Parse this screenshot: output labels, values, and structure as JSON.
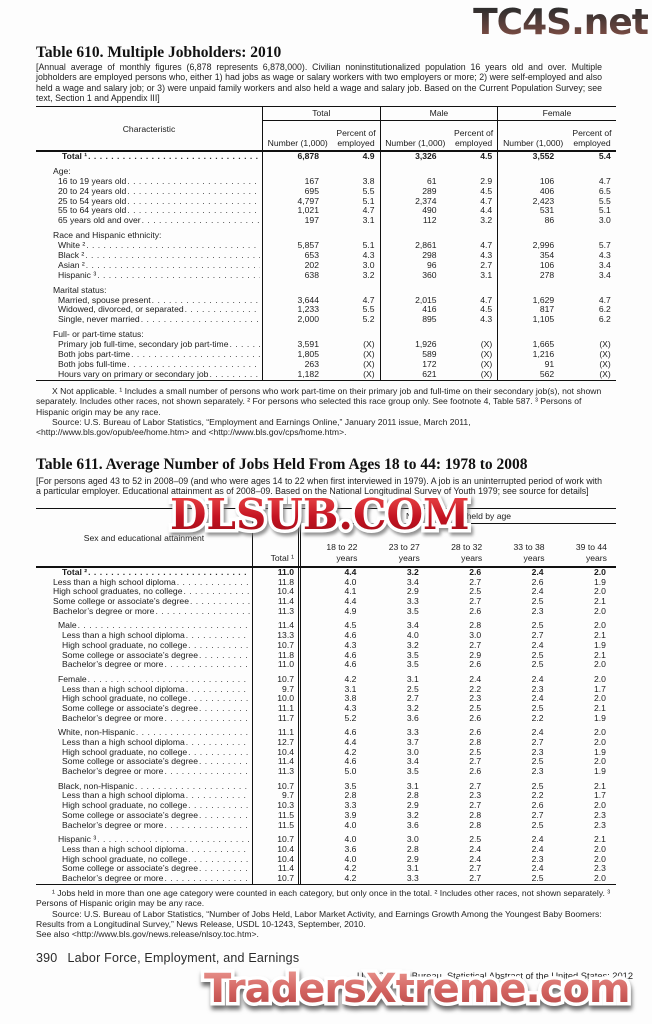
{
  "watermarks": {
    "top": "TC4S.net",
    "middle": "DLSUB.COM",
    "bottom": "TradersXtreme.com",
    "top_color": "#4a3b38",
    "middle_color": "#c01622",
    "bottom_color": "#d05f5c"
  },
  "table610": {
    "title": "Table 610. Multiple Jobholders: 2010",
    "intro": "[Annual average of monthly figures (6,878 represents 6,878,000). Civilian noninstitutionalized population 16 years old and over. Multiple jobholders are employed persons who, either 1) had jobs as wage or salary workers with two employers or more; 2) were self-employed and also held a wage and salary job; or 3) were unpaid family workers and also held a wage and salary job. Based on the Current Population Survey; see text, Section 1 and Appendix III]",
    "col_header": "Characteristic",
    "groups": [
      "Total",
      "Male",
      "Female"
    ],
    "sub_number": "Number (1,000)",
    "sub_percent": "Percent of employed",
    "rows": [
      {
        "label": "Total ¹",
        "indent": 2,
        "bold": true,
        "dots": true,
        "values": [
          "6,878",
          "4.9",
          "3,326",
          "4.5",
          "3,552",
          "5.4"
        ]
      },
      {
        "gap": true
      },
      {
        "label": "Age:",
        "indent": 0
      },
      {
        "label": "16 to 19 years old",
        "indent": 1,
        "dots": true,
        "values": [
          "167",
          "3.8",
          "61",
          "2.9",
          "106",
          "4.7"
        ]
      },
      {
        "label": "20 to 24 years old",
        "indent": 1,
        "dots": true,
        "values": [
          "695",
          "5.5",
          "289",
          "4.5",
          "406",
          "6.5"
        ]
      },
      {
        "label": "25 to 54 years old",
        "indent": 1,
        "dots": true,
        "values": [
          "4,797",
          "5.1",
          "2,374",
          "4.7",
          "2,423",
          "5.5"
        ]
      },
      {
        "label": "55 to 64 years old",
        "indent": 1,
        "dots": true,
        "values": [
          "1,021",
          "4.7",
          "490",
          "4.4",
          "531",
          "5.1"
        ]
      },
      {
        "label": "65 years old and over",
        "indent": 1,
        "dots": true,
        "values": [
          "197",
          "3.1",
          "112",
          "3.2",
          "86",
          "3.0"
        ]
      },
      {
        "gap": true
      },
      {
        "label": "Race and Hispanic ethnicity:",
        "indent": 0
      },
      {
        "label": "White ²",
        "indent": 1,
        "dots": true,
        "values": [
          "5,857",
          "5.1",
          "2,861",
          "4.7",
          "2,996",
          "5.7"
        ]
      },
      {
        "label": "Black ²",
        "indent": 1,
        "dots": true,
        "values": [
          "653",
          "4.3",
          "298",
          "4.3",
          "354",
          "4.3"
        ]
      },
      {
        "label": "Asian ²",
        "indent": 1,
        "dots": true,
        "values": [
          "202",
          "3.0",
          "96",
          "2.7",
          "106",
          "3.4"
        ]
      },
      {
        "label": "Hispanic ³",
        "indent": 1,
        "dots": true,
        "values": [
          "638",
          "3.2",
          "360",
          "3.1",
          "278",
          "3.4"
        ]
      },
      {
        "gap": true
      },
      {
        "label": "Marital status:",
        "indent": 0
      },
      {
        "label": "Married, spouse present",
        "indent": 1,
        "dots": true,
        "values": [
          "3,644",
          "4.7",
          "2,015",
          "4.7",
          "1,629",
          "4.7"
        ]
      },
      {
        "label": "Widowed, divorced, or separated",
        "indent": 1,
        "dots": true,
        "values": [
          "1,233",
          "5.5",
          "416",
          "4.5",
          "817",
          "6.2"
        ]
      },
      {
        "label": "Single, never married",
        "indent": 1,
        "dots": true,
        "values": [
          "2,000",
          "5.2",
          "895",
          "4.3",
          "1,105",
          "6.2"
        ]
      },
      {
        "gap": true
      },
      {
        "label": "Full- or part-time status:",
        "indent": 0
      },
      {
        "label": "Primary job full-time, secondary job part-time",
        "indent": 1,
        "dots": true,
        "values": [
          "3,591",
          "(X)",
          "1,926",
          "(X)",
          "1,665",
          "(X)"
        ]
      },
      {
        "label": "Both jobs part-time",
        "indent": 1,
        "dots": true,
        "values": [
          "1,805",
          "(X)",
          "589",
          "(X)",
          "1,216",
          "(X)"
        ]
      },
      {
        "label": "Both jobs full-time",
        "indent": 1,
        "dots": true,
        "values": [
          "263",
          "(X)",
          "172",
          "(X)",
          "91",
          "(X)"
        ]
      },
      {
        "label": "Hours vary on primary or secondary job",
        "indent": 1,
        "dots": true,
        "values": [
          "1,182",
          "(X)",
          "621",
          "(X)",
          "562",
          "(X)"
        ]
      }
    ],
    "footnote": "X Not applicable. ¹ Includes a small number of persons who work part-time on their primary job and full-time on their secondary job(s), not shown separately. Includes other races, not shown separately. ² For persons who selected this race group only. See footnote 4, Table 587. ³ Persons of Hispanic origin may be any race.",
    "source": "Source: U.S. Bureau of Labor Statistics, “Employment and Earnings Online,” January 2011 issue, March 2011, <http://www.bls.gov/opub/ee/home.htm> and <http://www.bls.gov/cps/home.htm>."
  },
  "table611": {
    "title": "Table 611. Average Number of Jobs Held From Ages 18 to 44: 1978 to 2008",
    "intro": "[For persons aged 43 to 52 in 2008–09 (and who were ages 14 to 22 when first interviewed in 1979). A job is an uninterrupted period of work with a particular employer. Educational attainment as of 2008–09. Based on the National Longitudinal Survey of Youth 1979; see source for details]",
    "col_header": "Sex and educational attainment",
    "total_col": "Total ¹",
    "span_header": "Number of jobs held by age",
    "age_cols": [
      "18 to 22\nyears",
      "23 to 27\nyears",
      "28 to 32\nyears",
      "33 to 38\nyears",
      "39 to 44\nyears"
    ],
    "rows": [
      {
        "label": "Total ²",
        "indent": 2,
        "bold": true,
        "dots": true,
        "values": [
          "11.0",
          "4.4",
          "3.2",
          "2.6",
          "2.4",
          "2.0"
        ]
      },
      {
        "label": "Less than a high school diploma",
        "indent": 0,
        "dots": true,
        "values": [
          "11.8",
          "4.0",
          "3.4",
          "2.7",
          "2.6",
          "1.9"
        ]
      },
      {
        "label": "High school graduates, no college",
        "indent": 0,
        "dots": true,
        "values": [
          "10.4",
          "4.1",
          "2.9",
          "2.5",
          "2.4",
          "2.0"
        ]
      },
      {
        "label": "Some college or associate’s degree",
        "indent": 0,
        "dots": true,
        "values": [
          "11.4",
          "4.4",
          "3.3",
          "2.7",
          "2.5",
          "2.1"
        ]
      },
      {
        "label": "Bachelor’s degree or more",
        "indent": 0,
        "dots": true,
        "values": [
          "11.3",
          "4.9",
          "3.5",
          "2.6",
          "2.3",
          "2.0"
        ]
      },
      {
        "gap": true
      },
      {
        "label": "Male",
        "indent": 1,
        "dots": true,
        "values": [
          "11.4",
          "4.5",
          "3.4",
          "2.8",
          "2.5",
          "2.0"
        ]
      },
      {
        "label": "Less than a high school diploma",
        "indent": 2,
        "dots": true,
        "values": [
          "13.3",
          "4.6",
          "4.0",
          "3.0",
          "2.7",
          "2.1"
        ]
      },
      {
        "label": "High school graduate, no college",
        "indent": 2,
        "dots": true,
        "values": [
          "10.7",
          "4.3",
          "3.2",
          "2.7",
          "2.4",
          "1.9"
        ]
      },
      {
        "label": "Some college or associate’s degree",
        "indent": 2,
        "dots": true,
        "values": [
          "11.8",
          "4.6",
          "3.5",
          "2.9",
          "2.5",
          "2.1"
        ]
      },
      {
        "label": "Bachelor’s degree or more",
        "indent": 2,
        "dots": true,
        "values": [
          "11.0",
          "4.6",
          "3.5",
          "2.6",
          "2.5",
          "2.0"
        ]
      },
      {
        "gap": true
      },
      {
        "label": "Female",
        "indent": 1,
        "dots": true,
        "values": [
          "10.7",
          "4.2",
          "3.1",
          "2.4",
          "2.4",
          "2.0"
        ]
      },
      {
        "label": "Less than a high school diploma",
        "indent": 2,
        "dots": true,
        "values": [
          "9.7",
          "3.1",
          "2.5",
          "2.2",
          "2.3",
          "1.7"
        ]
      },
      {
        "label": "High school graduate, no college",
        "indent": 2,
        "dots": true,
        "values": [
          "10.0",
          "3.8",
          "2.7",
          "2.3",
          "2.4",
          "2.0"
        ]
      },
      {
        "label": "Some college or associate’s degree",
        "indent": 2,
        "dots": true,
        "values": [
          "11.1",
          "4.3",
          "3.2",
          "2.5",
          "2.5",
          "2.1"
        ]
      },
      {
        "label": "Bachelor’s degree or more",
        "indent": 2,
        "dots": true,
        "values": [
          "11.7",
          "5.2",
          "3.6",
          "2.6",
          "2.2",
          "1.9"
        ]
      },
      {
        "gap": true
      },
      {
        "label": "White, non-Hispanic",
        "indent": 1,
        "dots": true,
        "values": [
          "11.1",
          "4.6",
          "3.3",
          "2.6",
          "2.4",
          "2.0"
        ]
      },
      {
        "label": "Less than a high school diploma",
        "indent": 2,
        "dots": true,
        "values": [
          "12.7",
          "4.4",
          "3.7",
          "2.8",
          "2.7",
          "2.0"
        ]
      },
      {
        "label": "High school graduate, no college",
        "indent": 2,
        "dots": true,
        "values": [
          "10.4",
          "4.2",
          "3.0",
          "2.5",
          "2.3",
          "1.9"
        ]
      },
      {
        "label": "Some college or associate’s degree",
        "indent": 2,
        "dots": true,
        "values": [
          "11.4",
          "4.6",
          "3.4",
          "2.7",
          "2.5",
          "2.0"
        ]
      },
      {
        "label": "Bachelor’s degree or more",
        "indent": 2,
        "dots": true,
        "values": [
          "11.3",
          "5.0",
          "3.5",
          "2.6",
          "2.3",
          "1.9"
        ]
      },
      {
        "gap": true
      },
      {
        "label": "Black, non-Hispanic",
        "indent": 1,
        "dots": true,
        "values": [
          "10.7",
          "3.5",
          "3.1",
          "2.7",
          "2.5",
          "2.1"
        ]
      },
      {
        "label": "Less than a high school diploma",
        "indent": 2,
        "dots": true,
        "values": [
          "9.7",
          "2.8",
          "2.8",
          "2.3",
          "2.2",
          "1.7"
        ]
      },
      {
        "label": "High school graduate, no college",
        "indent": 2,
        "dots": true,
        "values": [
          "10.3",
          "3.3",
          "2.9",
          "2.7",
          "2.6",
          "2.0"
        ]
      },
      {
        "label": "Some college or associate’s degree",
        "indent": 2,
        "dots": true,
        "values": [
          "11.5",
          "3.9",
          "3.2",
          "2.8",
          "2.7",
          "2.3"
        ]
      },
      {
        "label": "Bachelor’s degree or more",
        "indent": 2,
        "dots": true,
        "values": [
          "11.5",
          "4.0",
          "3.6",
          "2.8",
          "2.5",
          "2.3"
        ]
      },
      {
        "gap": true
      },
      {
        "label": "Hispanic ³",
        "indent": 1,
        "dots": true,
        "values": [
          "10.7",
          "4.0",
          "3.0",
          "2.5",
          "2.4",
          "2.1"
        ]
      },
      {
        "label": "Less than a high school diploma",
        "indent": 2,
        "dots": true,
        "values": [
          "10.4",
          "3.6",
          "2.8",
          "2.4",
          "2.4",
          "2.0"
        ]
      },
      {
        "label": "High school graduate, no college",
        "indent": 2,
        "dots": true,
        "values": [
          "10.4",
          "4.0",
          "2.9",
          "2.4",
          "2.3",
          "2.0"
        ]
      },
      {
        "label": "Some college or associate’s degree",
        "indent": 2,
        "dots": true,
        "values": [
          "11.4",
          "4.2",
          "3.1",
          "2.7",
          "2.4",
          "2.3"
        ]
      },
      {
        "label": "Bachelor’s degree or more",
        "indent": 2,
        "dots": true,
        "values": [
          "10.7",
          "4.2",
          "3.3",
          "2.7",
          "2.5",
          "2.0"
        ]
      }
    ],
    "footnote": "¹ Jobs held in more than one age category were counted in each category, but only once in the total. ² Includes other races, not shown separately. ³ Persons of Hispanic origin may be any race.",
    "source": "Source: U.S. Bureau of Labor Statistics, “Number of Jobs Held, Labor Market Activity, and  Earnings Growth Among the Youngest Baby Boomers: Results from a  Longitudinal Survey,” News Release, USDL 10-1243, September, 2010.",
    "see_also": "See also <http://www.bls.gov/news.release/nlsoy.toc.htm>."
  },
  "footer": {
    "page_number": "390",
    "chapter": "Labor Force, Employment, and Earnings",
    "source_line": "U.S. Census Bureau, Statistical Abstract of the United States: 2012"
  }
}
